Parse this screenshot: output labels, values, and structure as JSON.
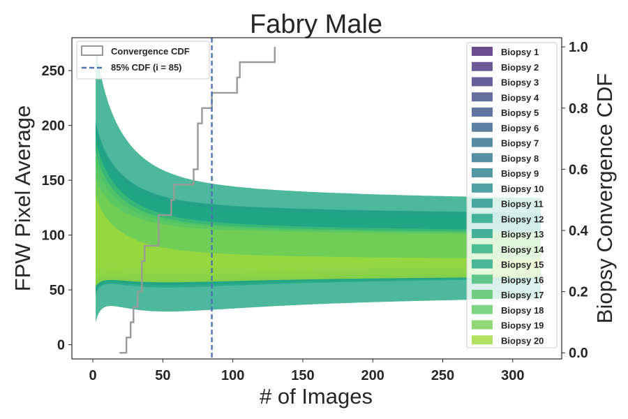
{
  "chart_data": {
    "type": "area",
    "title": "Fabry Male",
    "xlabel": "# of Images",
    "ylabel": "FPW Pixel Average",
    "y2label": "Biopsy Convergence CDF",
    "xlim": [
      -15,
      335
    ],
    "ylim": [
      -13,
      280
    ],
    "y2lim": [
      -0.02,
      1.03
    ],
    "xticks": [
      0,
      50,
      100,
      150,
      200,
      250,
      300
    ],
    "yticks": [
      0,
      50,
      100,
      150,
      200,
      250
    ],
    "y2ticks": [
      0.0,
      0.2,
      0.4,
      0.6,
      0.8,
      1.0
    ],
    "y2ticklabels": [
      "0.0",
      "0.2",
      "0.4",
      "0.6",
      "0.8",
      "1.0"
    ],
    "grid": false,
    "series": [
      {
        "name": "Biopsy 1",
        "color": "#482173",
        "start_y": 155,
        "end_mean": 72,
        "end_halfwidth": 3
      },
      {
        "name": "Biopsy 2",
        "color": "#46307e",
        "start_y": 150,
        "end_mean": 73,
        "end_halfwidth": 3
      },
      {
        "name": "Biopsy 3",
        "color": "#443983",
        "start_y": 145,
        "end_mean": 72,
        "end_halfwidth": 4
      },
      {
        "name": "Biopsy 4",
        "color": "#3f4889",
        "start_y": 150,
        "end_mean": 71,
        "end_halfwidth": 3
      },
      {
        "name": "Biopsy 5",
        "color": "#3b528b",
        "start_y": 160,
        "end_mean": 72,
        "end_halfwidth": 5
      },
      {
        "name": "Biopsy 6",
        "color": "#355f8d",
        "start_y": 165,
        "end_mean": 73,
        "end_halfwidth": 5
      },
      {
        "name": "Biopsy 7",
        "color": "#2e6f8e",
        "start_y": 170,
        "end_mean": 74,
        "end_halfwidth": 5
      },
      {
        "name": "Biopsy 8",
        "color": "#2c728e",
        "start_y": 175,
        "end_mean": 75,
        "end_halfwidth": 6
      },
      {
        "name": "Biopsy 9",
        "color": "#27808e",
        "start_y": 200,
        "end_mean": 103,
        "end_halfwidth": 10
      },
      {
        "name": "Biopsy 10",
        "color": "#23898e",
        "start_y": 205,
        "end_mean": 104,
        "end_halfwidth": 9
      },
      {
        "name": "Biopsy 11",
        "color": "#1f958b",
        "start_y": 200,
        "end_mean": 102,
        "end_halfwidth": 8
      },
      {
        "name": "Biopsy 12",
        "color": "#20a386",
        "start_y": 195,
        "end_mean": 103,
        "end_halfwidth": 8
      },
      {
        "name": "Biopsy 13",
        "color": "#1fa088",
        "start_y": 198,
        "end_mean": 104,
        "end_halfwidth": 7
      },
      {
        "name": "Biopsy 14",
        "color": "#28ae80",
        "start_y": 190,
        "end_mean": 80,
        "end_halfwidth": 12
      },
      {
        "name": "Biopsy 15",
        "color": "#21a685",
        "start_y": 260,
        "end_mean": 88,
        "end_halfwidth": 33
      },
      {
        "name": "Biopsy 16",
        "color": "#3fbc73",
        "start_y": 185,
        "end_mean": 85,
        "end_halfwidth": 12
      },
      {
        "name": "Biopsy 17",
        "color": "#56c667",
        "start_y": 175,
        "end_mean": 86,
        "end_halfwidth": 10
      },
      {
        "name": "Biopsy 18",
        "color": "#5ec962",
        "start_y": 165,
        "end_mean": 87,
        "end_halfwidth": 9
      },
      {
        "name": "Biopsy 19",
        "color": "#75d054",
        "start_y": 150,
        "end_mean": 88,
        "end_halfwidth": 8
      },
      {
        "name": "Biopsy 20",
        "color": "#a0da39",
        "start_y": 140,
        "end_mean": 70,
        "end_halfwidth": 3
      }
    ],
    "band_x_start": 2,
    "band_x_end": 320,
    "cdf": {
      "name": "Convergence CDF",
      "color": "#999999",
      "x": [
        19,
        24,
        27,
        29,
        32,
        35,
        37,
        47,
        56,
        58,
        72,
        75,
        78,
        85,
        103,
        105,
        130
      ],
      "y": [
        0.0,
        0.05,
        0.1,
        0.15,
        0.2,
        0.3,
        0.35,
        0.45,
        0.5,
        0.55,
        0.6,
        0.75,
        0.8,
        0.85,
        0.9,
        0.95,
        1.0
      ]
    },
    "vline": {
      "name": "85% CDF (i = 85)",
      "x": 85,
      "color": "#4c72b0"
    },
    "legend_left_position": "upper left",
    "legend_right_position": "upper right"
  }
}
